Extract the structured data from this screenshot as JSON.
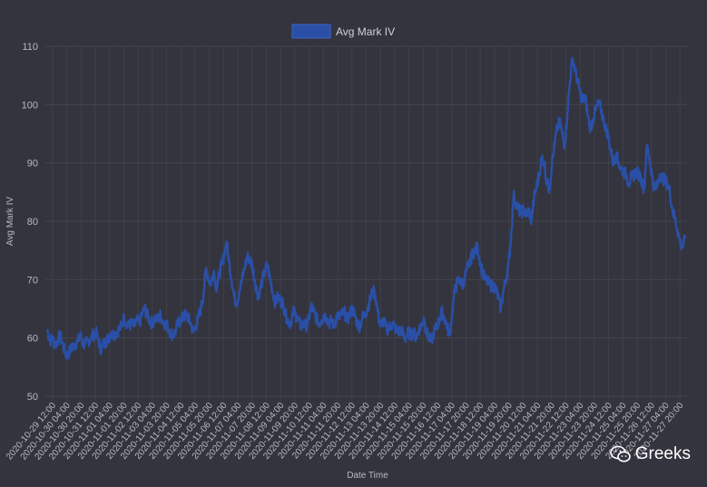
{
  "chart_data": {
    "type": "line",
    "title": "",
    "xlabel": "Date Time",
    "ylabel": "Avg Mark IV",
    "ylim": [
      50,
      110
    ],
    "yticks": [
      50,
      60,
      70,
      80,
      90,
      100,
      110
    ],
    "grid": true,
    "legend_position": "top-center",
    "x_tick_labels": [
      "2020-10-29 12:00",
      "2020-10-30 04:00",
      "2020-10-30 20:00",
      "2020-10-31 12:00",
      "2020-11-01 04:00",
      "2020-11-01 20:00",
      "2020-11-02 12:00",
      "2020-11-03 04:00",
      "2020-11-03 20:00",
      "2020-11-04 12:00",
      "2020-11-05 04:00",
      "2020-11-05 20:00",
      "2020-11-06 12:00",
      "2020-11-07 04:00",
      "2020-11-07 20:00",
      "2020-11-08 12:00",
      "2020-11-09 04:00",
      "2020-11-09 20:00",
      "2020-11-10 12:00",
      "2020-11-11 04:00",
      "2020-11-11 20:00",
      "2020-11-12 12:00",
      "2020-11-13 04:00",
      "2020-11-13 20:00",
      "2020-11-14 12:00",
      "2020-11-15 04:00",
      "2020-11-15 20:00",
      "2020-11-16 12:00",
      "2020-11-17 04:00",
      "2020-11-17 20:00",
      "2020-11-18 12:00",
      "2020-11-19 04:00",
      "2020-11-19 20:00",
      "2020-11-20 12:00",
      "2020-11-21 04:00",
      "2020-11-21 20:00",
      "2020-11-22 12:00",
      "2020-11-23 04:00",
      "2020-11-23 20:00",
      "2020-11-24 12:00",
      "2020-11-25 04:00",
      "2020-11-25 20:00",
      "2020-11-26 12:00",
      "2020-11-27 04:00",
      "2020-11-27 20:00"
    ],
    "series": [
      {
        "name": "Avg Mark IV",
        "color": "#2a4fa6",
        "values": [
          61.5,
          59.5,
          60.0,
          58.8,
          59.5,
          60.5,
          59.0,
          57.5,
          57.0,
          58.0,
          58.5,
          59.0,
          59.5,
          60.5,
          59.0,
          59.0,
          59.5,
          60.0,
          60.5,
          61.0,
          59.5,
          58.0,
          59.0,
          59.5,
          60.0,
          61.0,
          60.5,
          61.0,
          61.5,
          62.0,
          63.5,
          62.5,
          62.0,
          62.5,
          62.0,
          63.0,
          62.5,
          64.0,
          65.0,
          64.0,
          63.0,
          62.5,
          63.5,
          63.0,
          64.0,
          63.0,
          62.5,
          62.0,
          61.0,
          60.5,
          61.0,
          62.5,
          63.0,
          63.5,
          64.0,
          63.5,
          62.5,
          61.0,
          62.0,
          63.5,
          65.0,
          67.5,
          72.0,
          70.0,
          69.5,
          71.5,
          68.5,
          70.5,
          72.5,
          74.0,
          76.5,
          73.0,
          70.0,
          67.0,
          66.0,
          68.0,
          70.0,
          72.0,
          74.0,
          73.5,
          72.5,
          70.0,
          67.5,
          68.0,
          70.0,
          71.5,
          72.5,
          70.0,
          68.0,
          66.0,
          67.0,
          66.5,
          66.0,
          64.0,
          63.0,
          62.5,
          64.5,
          64.0,
          63.0,
          62.0,
          62.5,
          62.0,
          63.0,
          65.5,
          64.5,
          63.5,
          62.5,
          63.0,
          64.0,
          63.5,
          62.5,
          63.0,
          62.0,
          64.0,
          63.5,
          64.0,
          64.5,
          63.0,
          64.0,
          65.0,
          64.0,
          62.5,
          62.0,
          63.5,
          64.0,
          65.0,
          66.5,
          68.0,
          67.5,
          64.5,
          62.0,
          63.0,
          62.0,
          61.5,
          62.0,
          62.5,
          61.5,
          61.0,
          61.5,
          60.5,
          60.0,
          61.0,
          60.5,
          61.0,
          60.0,
          61.5,
          62.0,
          63.5,
          61.0,
          60.0,
          59.5,
          61.0,
          62.0,
          63.0,
          64.5,
          63.5,
          62.0,
          60.5,
          64.0,
          68.0,
          69.5,
          70.0,
          69.0,
          70.5,
          72.0,
          73.0,
          74.5,
          75.0,
          75.5,
          73.0,
          71.0,
          70.0,
          69.5,
          69.0,
          69.0,
          68.5,
          67.0,
          65.0,
          68.0,
          70.0,
          72.5,
          77.0,
          84.5,
          83.0,
          82.0,
          81.5,
          82.0,
          81.0,
          82.0,
          80.0,
          84.0,
          86.0,
          88.0,
          91.0,
          90.0,
          86.5,
          85.5,
          90.0,
          93.0,
          96.0,
          97.0,
          95.0,
          93.0,
          98.5,
          104.0,
          108.0,
          106.0,
          104.0,
          102.0,
          100.5,
          101.5,
          98.0,
          96.0,
          97.5,
          99.0,
          100.0,
          99.5,
          97.5,
          96.0,
          94.5,
          92.0,
          90.0,
          91.5,
          90.0,
          89.0,
          88.5,
          88.0,
          86.5,
          87.5,
          88.0,
          88.5,
          88.0,
          87.0,
          85.5,
          93.0,
          91.0,
          88.0,
          85.5,
          86.0,
          88.0,
          87.5,
          87.0,
          86.5,
          85.0,
          82.0,
          80.5,
          78.5,
          76.5,
          75.5,
          77.0
        ]
      }
    ]
  },
  "watermark": {
    "icon": "wechat-icon",
    "text": "Greeks"
  }
}
